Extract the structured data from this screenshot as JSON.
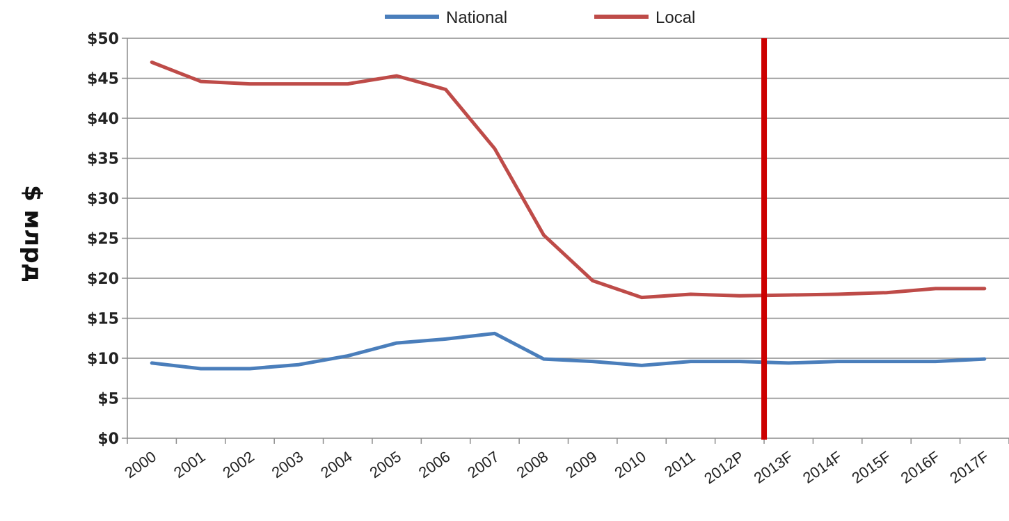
{
  "chart_data": {
    "type": "line",
    "categories": [
      "2000",
      "2001",
      "2002",
      "2003",
      "2004",
      "2005",
      "2006",
      "2007",
      "2008",
      "2009",
      "2010",
      "2011",
      "2012P",
      "2013F",
      "2014F",
      "2015F",
      "2016F",
      "2017F"
    ],
    "series": [
      {
        "name": "National",
        "color": "#4a7ebb",
        "values": [
          9.4,
          8.7,
          8.7,
          9.2,
          10.3,
          11.9,
          12.4,
          13.1,
          9.9,
          9.6,
          9.1,
          9.6,
          9.6,
          9.4,
          9.6,
          9.6,
          9.6,
          9.9
        ]
      },
      {
        "name": "Local",
        "color": "#be4b48",
        "values": [
          47.0,
          44.6,
          44.3,
          44.3,
          44.3,
          45.3,
          43.6,
          36.2,
          25.4,
          19.7,
          17.6,
          18.0,
          17.8,
          17.9,
          18.0,
          18.2,
          18.7,
          18.7
        ]
      }
    ],
    "ylabel": "$ млрд",
    "ylim": [
      0,
      50
    ],
    "yticks": [
      0,
      5,
      10,
      15,
      20,
      25,
      30,
      35,
      40,
      45,
      50
    ],
    "ytick_labels": [
      "$0",
      "$5",
      "$10",
      "$15",
      "$20",
      "$25",
      "$30",
      "$35",
      "$40",
      "$45",
      "$50"
    ],
    "grid": "horizontal",
    "legend": "top-center",
    "divider_after": "2012P",
    "divider_color": "#cc0000"
  }
}
